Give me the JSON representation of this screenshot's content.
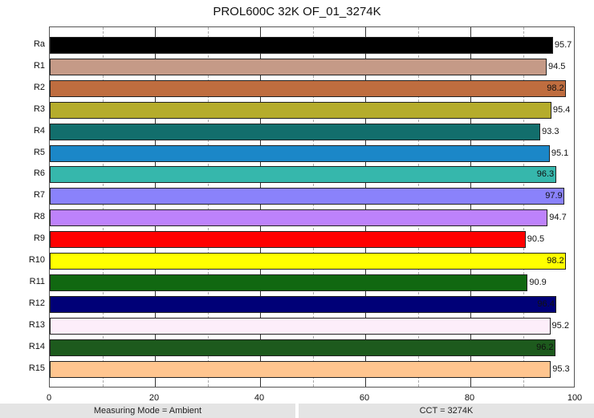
{
  "chart_data": {
    "type": "bar",
    "orientation": "horizontal",
    "title": "PROL600C 32K OF_01_3274K",
    "xlabel": "",
    "ylabel": "",
    "xlim": [
      0,
      100
    ],
    "xticks": [
      "0",
      "20",
      "40",
      "60",
      "80",
      "100"
    ],
    "grid": true,
    "categories": [
      "Ra",
      "R1",
      "R2",
      "R3",
      "R4",
      "R5",
      "R6",
      "R7",
      "R8",
      "R9",
      "R10",
      "R11",
      "R12",
      "R13",
      "R14",
      "R15"
    ],
    "values": [
      95.7,
      94.5,
      98.2,
      95.4,
      93.3,
      95.1,
      96.3,
      97.9,
      94.7,
      90.5,
      98.2,
      90.9,
      96.4,
      95.2,
      96.2,
      95.3
    ],
    "colors": [
      "#000000",
      "#c59a87",
      "#bf6d3f",
      "#b5ac2c",
      "#126e6c",
      "#1b87c8",
      "#36b7ac",
      "#8a82fb",
      "#bd82fb",
      "#ff0000",
      "#ffff00",
      "#116811",
      "#000077",
      "#fdeefa",
      "#1d5a1d",
      "#ffc58f"
    ]
  },
  "footer": {
    "left": "Measuring Mode = Ambient",
    "right": "CCT = 3274K"
  }
}
